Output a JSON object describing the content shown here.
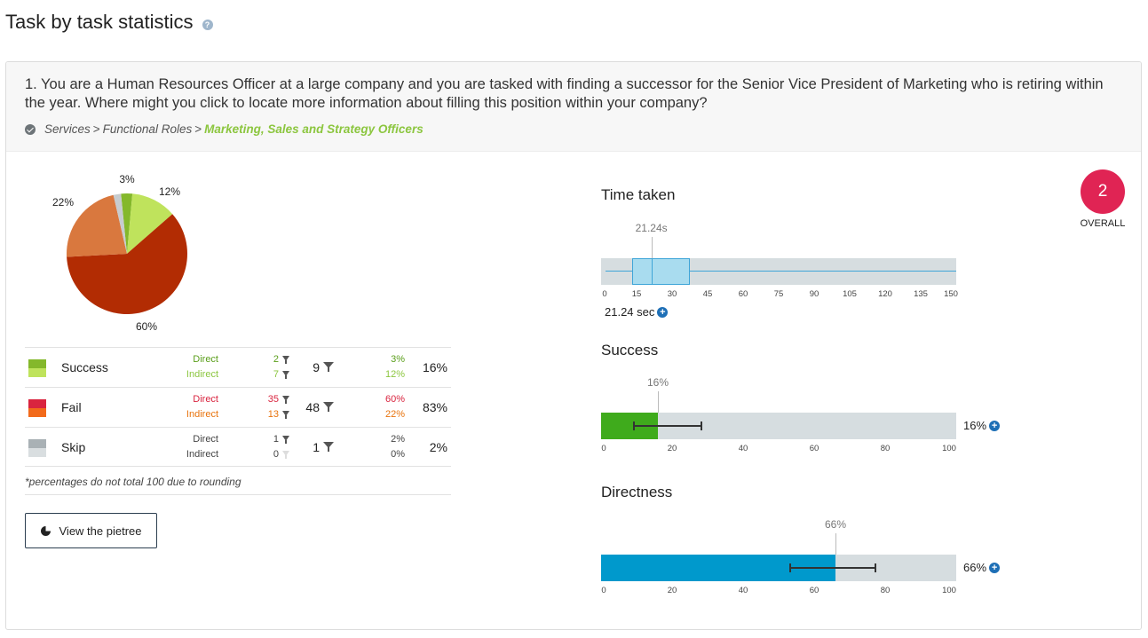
{
  "page": {
    "title": "Task by task statistics",
    "help_icon": "question-circle-icon"
  },
  "task": {
    "question": "1. You are a Human Resources Officer at a large company and you are tasked with finding a successor for the Senior Vice President of Marketing who is retiring within the year. Where might you click to locate more information about filling this position within your company?",
    "path": [
      "Services",
      "Functional Roles",
      "Marketing, Sales and Strategy Officers"
    ],
    "path_separator": ">"
  },
  "pie": {
    "slices": [
      {
        "name": "Direct success",
        "value": 3,
        "label": "3%",
        "color": "#84b82b"
      },
      {
        "name": "Indirect success",
        "value": 12,
        "label": "12%",
        "color": "#bfe35c"
      },
      {
        "name": "Direct fail",
        "value": 60,
        "label": "60%",
        "color": "#b22c03"
      },
      {
        "name": "Indirect fail",
        "value": 22,
        "label": "22%",
        "color": "#d9783e"
      },
      {
        "name": "Direct skip",
        "value": 2,
        "label": "",
        "color": "#c7cccf"
      },
      {
        "name": "Indirect skip",
        "value": 0,
        "label": "",
        "color": "#e6e8e9"
      }
    ]
  },
  "stats": {
    "rows": [
      {
        "label": "Success",
        "colors": [
          "#84b82b",
          "#bfe35c"
        ],
        "direct_label": "Direct",
        "indirect_label": "Indirect",
        "direct_color": "#5a9e1a",
        "indirect_color": "#8cc63f",
        "direct_count": "2",
        "indirect_count": "7",
        "total": "9",
        "direct_pct": "3%",
        "indirect_pct": "12%",
        "total_pct": "16%"
      },
      {
        "label": "Fail",
        "colors": [
          "#d9243f",
          "#f26a1b"
        ],
        "direct_label": "Direct",
        "indirect_label": "Indirect",
        "direct_color": "#d9243f",
        "indirect_color": "#e8730c",
        "direct_count": "35",
        "indirect_count": "13",
        "total": "48",
        "direct_pct": "60%",
        "indirect_pct": "22%",
        "total_pct": "83%"
      },
      {
        "label": "Skip",
        "colors": [
          "#a9b1b5",
          "#d9dee0"
        ],
        "direct_label": "Direct",
        "indirect_label": "Indirect",
        "direct_color": "#444444",
        "indirect_color": "#444444",
        "direct_count": "1",
        "indirect_count": "0",
        "total": "1",
        "direct_pct": "2%",
        "indirect_pct": "0%",
        "total_pct": "2%"
      }
    ],
    "footnote": "*percentages do not total 100 due to rounding",
    "pietree_button": "View the pietree"
  },
  "overall": {
    "value": "2",
    "label": "OVERALL",
    "color": "#e02454"
  },
  "time_taken": {
    "title": "Time taken",
    "median_label": "21.24s",
    "summary": "21.24 sec",
    "axis_max": 150,
    "ticks": [
      0,
      15,
      30,
      45,
      60,
      75,
      90,
      105,
      120,
      135,
      150
    ],
    "whisker_low": 2,
    "q1": 13,
    "median": 21.24,
    "q3": 37.5,
    "whisker_high": 150
  },
  "success": {
    "title": "Success",
    "value": 16,
    "value_label": "16%",
    "side_label": "16%",
    "err_low": 9,
    "err_high": 28,
    "fill_color": "#3fab1c",
    "ticks": [
      0,
      20,
      40,
      60,
      80,
      100
    ]
  },
  "directness": {
    "title": "Directness",
    "value": 66,
    "value_label": "66%",
    "side_label": "66%",
    "err_low": 53,
    "err_high": 77,
    "fill_color": "#0099cc",
    "ticks": [
      0,
      20,
      40,
      60,
      80,
      100
    ]
  }
}
